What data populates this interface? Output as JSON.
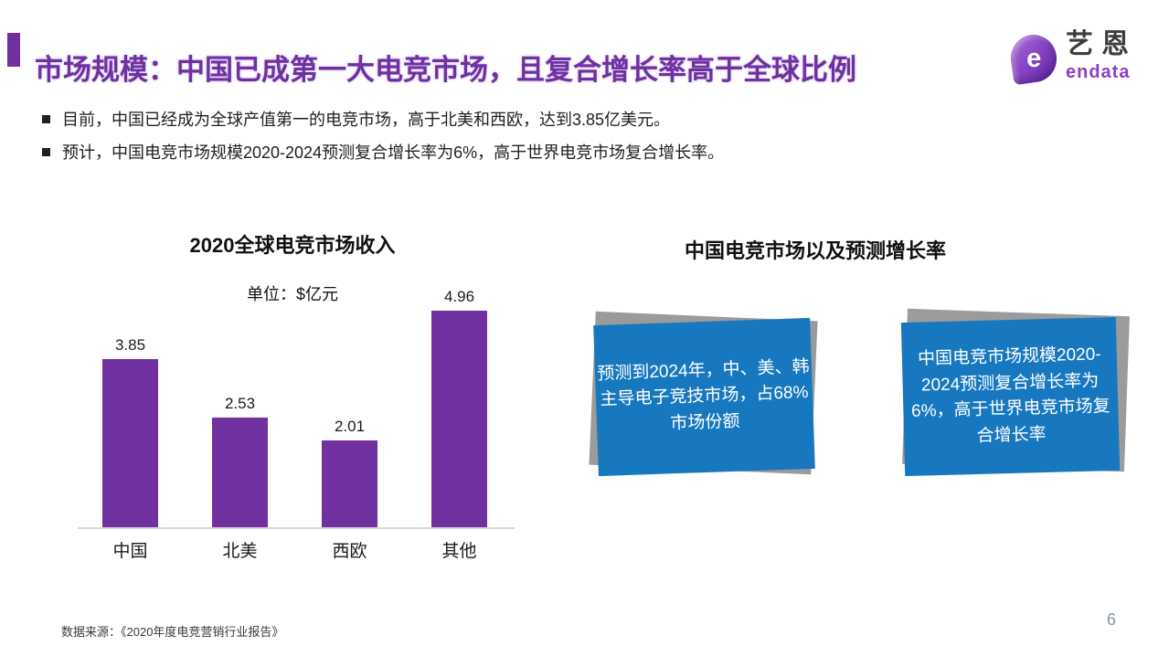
{
  "slide": {
    "title": "市场规模：中国已成第一大电竞市场，且复合增长率高于全球比例",
    "bullets": [
      {
        "text": "目前，中国已经成为全球产值第一的电竞市场，高于北美和西欧，达到3.85亿美元。"
      },
      {
        "text": "预计，中国电竞市场规模2020-2024预测复合增长率为6%，高于世界电竞市场复合增长率。"
      }
    ],
    "source": "数据来源：《2020年度电竞营销行业报告》",
    "page_number": "6"
  },
  "logo": {
    "icon": "endata-e-icon",
    "letter": "e",
    "name_cn": "艺恩",
    "name_en": "endata"
  },
  "chart_data": {
    "type": "bar",
    "title": "2020全球电竞市场收入",
    "unit_label": "单位：$亿元",
    "categories": [
      "中国",
      "北美",
      "西欧",
      "其他"
    ],
    "values": [
      3.85,
      2.53,
      2.01,
      4.96
    ],
    "value_labels": [
      "3.85",
      "2.53",
      "2.01",
      "4.96"
    ],
    "bar_color": "#7030A0",
    "ylim": [
      0,
      5.2
    ],
    "grid": false,
    "legend": false,
    "data_labels": true
  },
  "right_panel": {
    "title": "中国电竞市场以及预测增长率",
    "cards": [
      {
        "text": "预测到2024年，中、美、韩主导电子竞技市场，占68%市场份额"
      },
      {
        "text": "中国电竞市场规模2020-2024预测复合增长率为6%，高于世界电竞市场复合增长率"
      }
    ]
  },
  "colors": {
    "title_purple": "#7030A0",
    "bar_purple": "#7030A0",
    "card_blue": "#1778BF",
    "card_shadow_gray": "#9B9B9B",
    "text_dark": "#1F1F1F",
    "page_number_gray": "#8496A8"
  }
}
